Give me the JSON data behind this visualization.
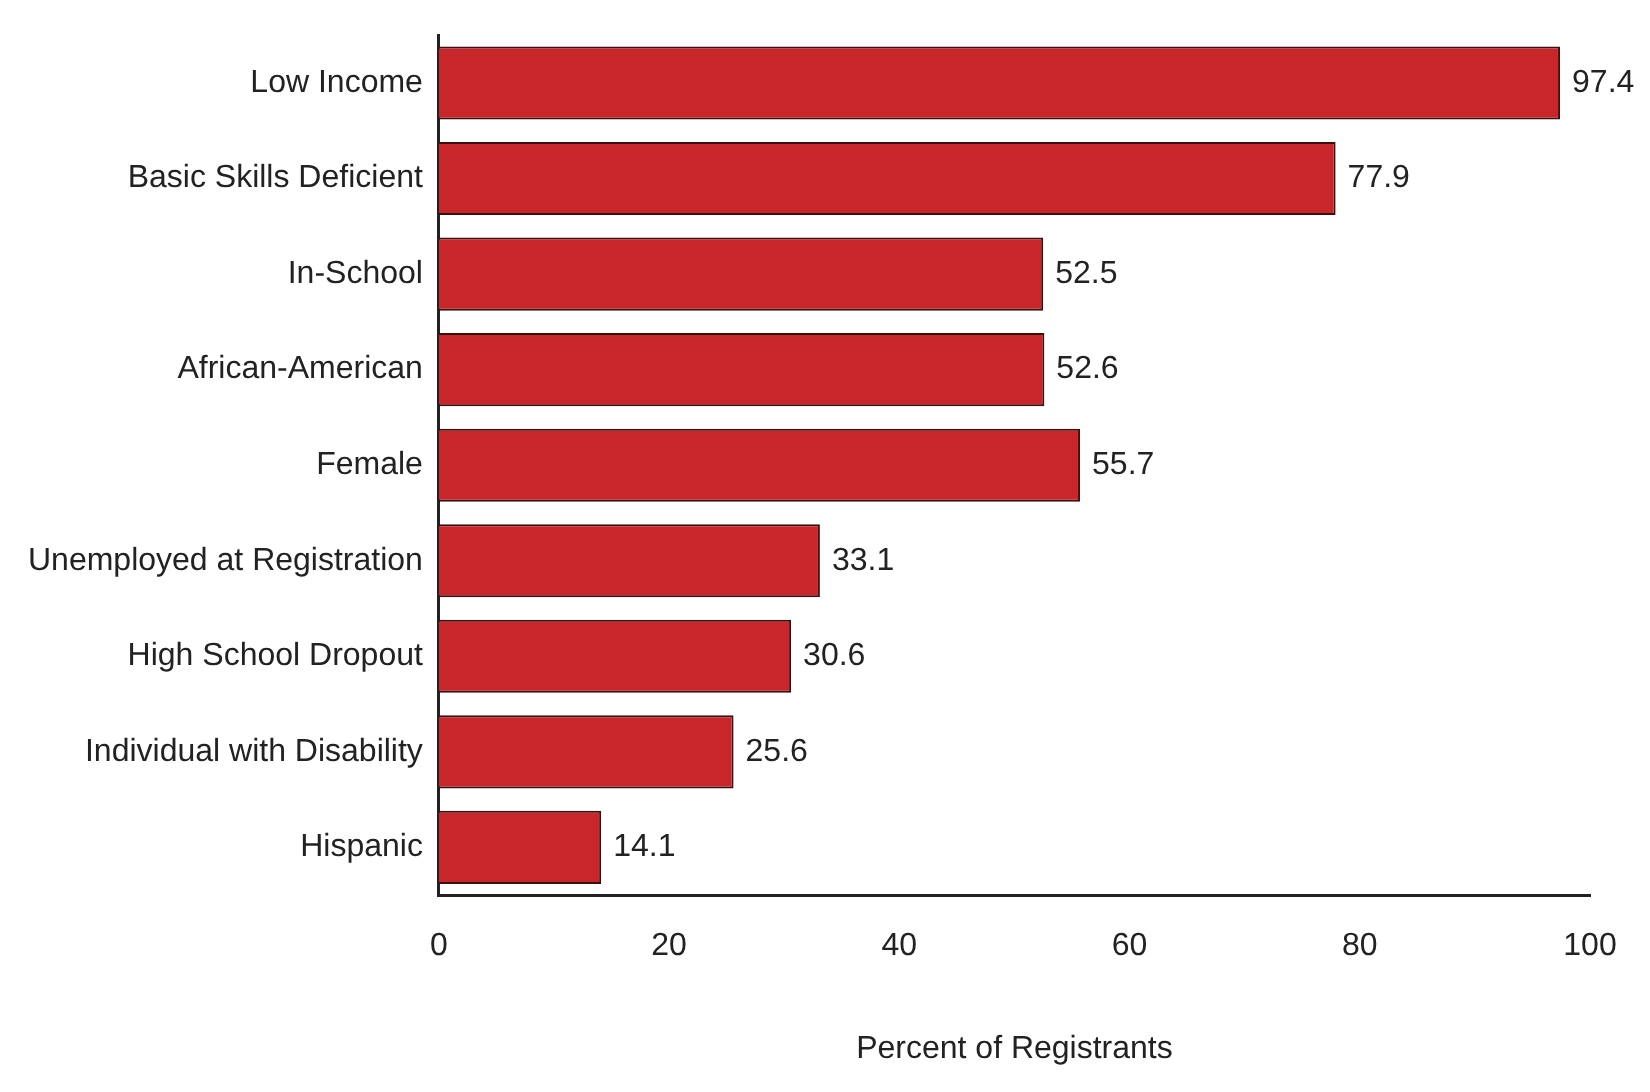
{
  "chart_data": {
    "type": "bar",
    "orientation": "horizontal",
    "xlabel": "Percent of Registrants",
    "categories": [
      "Low Income",
      "Basic Skills Deficient",
      "In-School",
      "African-American",
      "Female",
      "Unemployed at Registration",
      "High School Dropout",
      "Individual with Disability",
      "Hispanic"
    ],
    "values": [
      97.4,
      77.9,
      52.5,
      52.6,
      55.7,
      33.1,
      30.6,
      25.6,
      14.1
    ],
    "color": "#c8262b",
    "xlim": [
      0,
      100
    ],
    "xticks": [
      0,
      20,
      40,
      60,
      80,
      100
    ],
    "grid": false,
    "legend": false,
    "data_labels": true
  }
}
